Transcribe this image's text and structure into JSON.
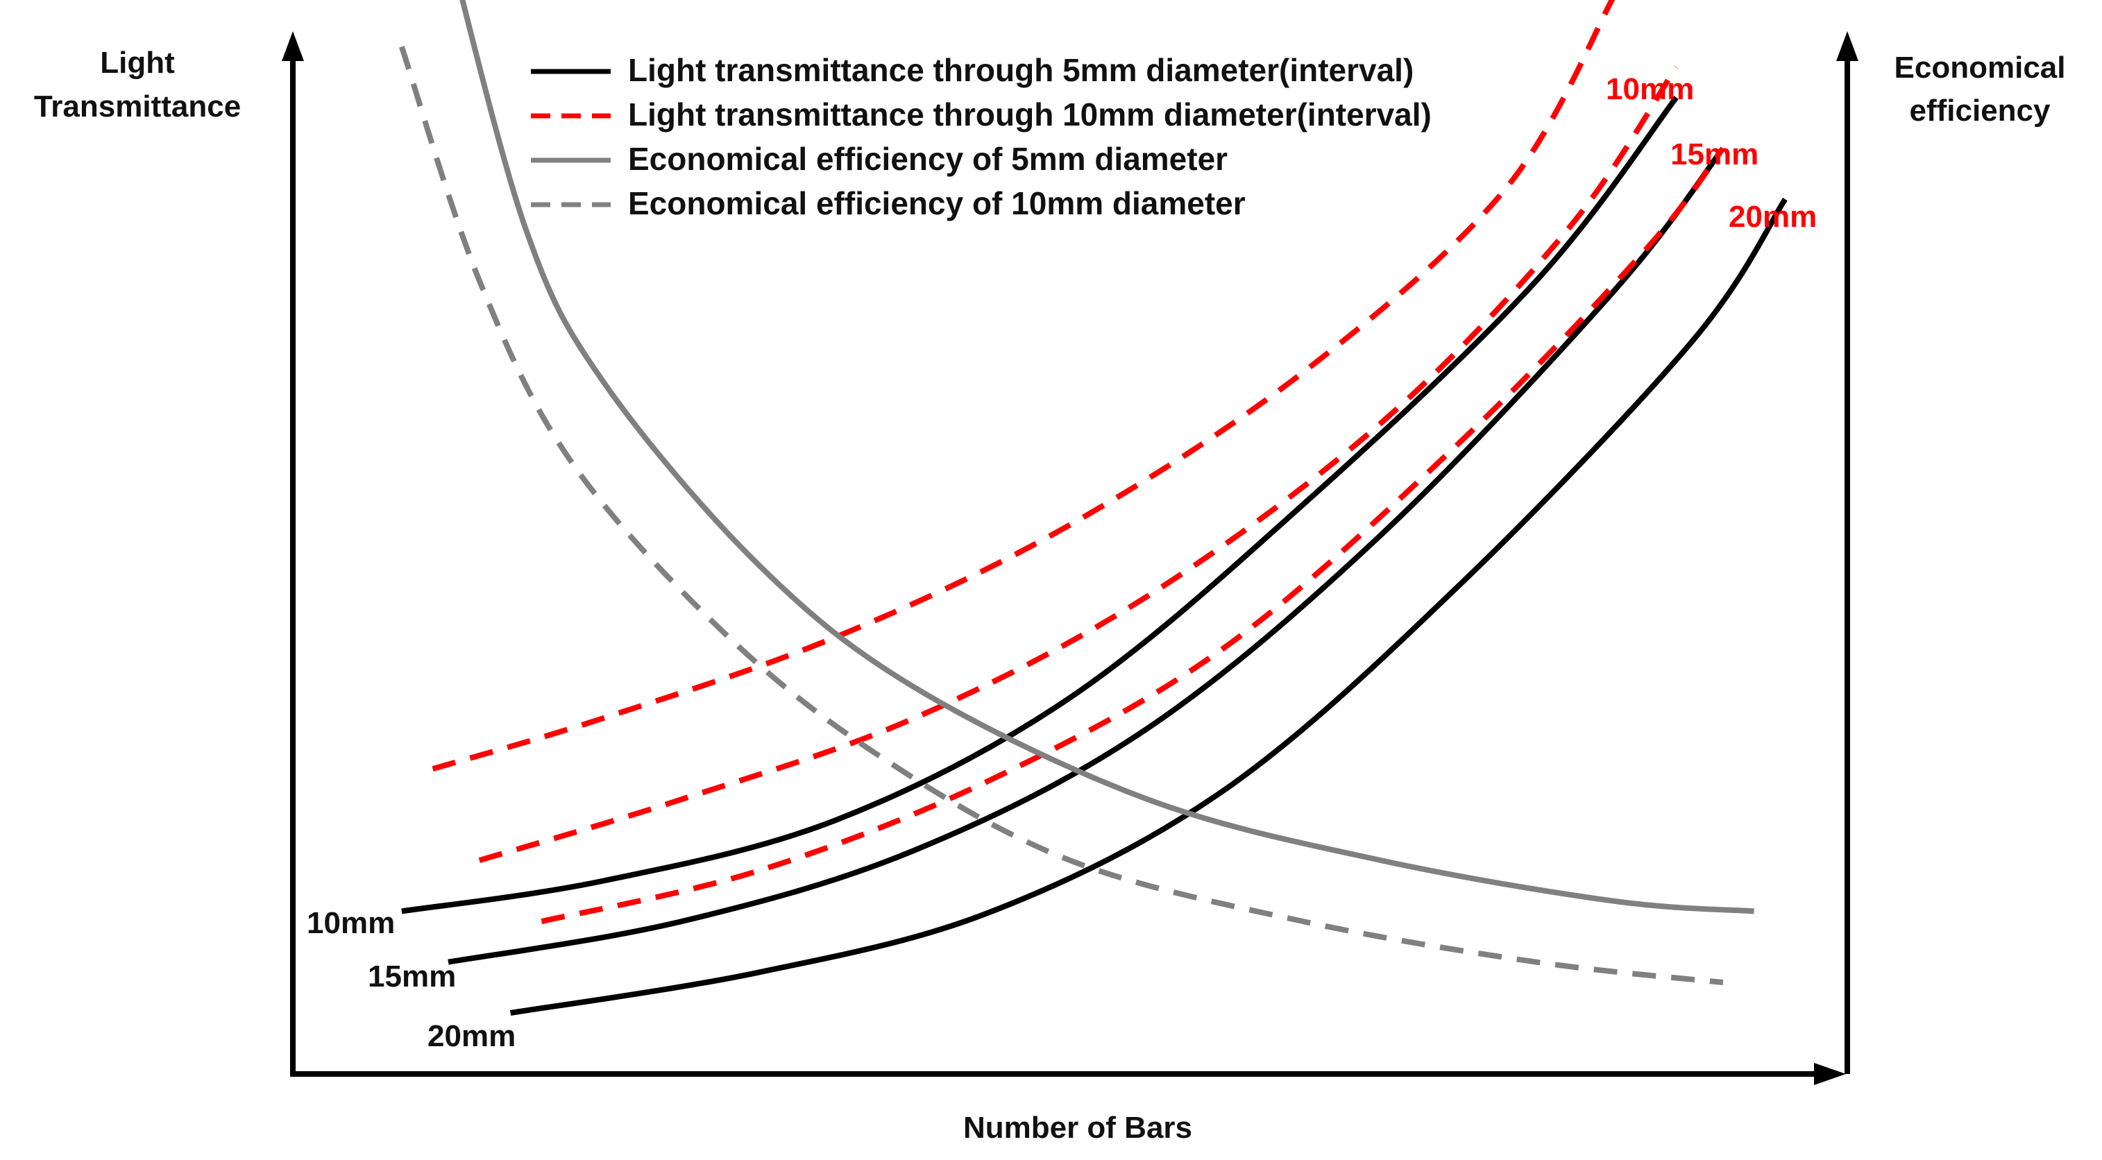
{
  "chart_data": {
    "type": "line",
    "title": "",
    "xlabel": "Number of Bars",
    "ylabel_left": [
      "Light",
      "Transmittance"
    ],
    "ylabel_right": [
      "Economical",
      "efficiency"
    ],
    "axis_ticks": "none",
    "grid": false,
    "legend_position": "top-center",
    "x_range": [
      0,
      100
    ],
    "y_range": [
      0,
      100
    ],
    "legend": [
      {
        "label": "Light transmittance through 5mm diameter(interval)",
        "color": "#000000",
        "style": "solid"
      },
      {
        "label": "Light transmittance through 10mm diameter(interval)",
        "color": "#ff0000",
        "style": "dashed"
      },
      {
        "label": "Economical efficiency of 5mm diameter",
        "color": "#808080",
        "style": "solid"
      },
      {
        "label": "Economical efficiency of 10mm diameter",
        "color": "#808080",
        "style": "dashed"
      }
    ],
    "series": [
      {
        "group": "Light transmittance through 5mm diameter(interval)",
        "label": "10mm",
        "color": "#000000",
        "dash": false,
        "points": [
          [
            7,
            16
          ],
          [
            20,
            19
          ],
          [
            35,
            25
          ],
          [
            50,
            37
          ],
          [
            65,
            56
          ],
          [
            80,
            78
          ],
          [
            89,
            96
          ]
        ]
      },
      {
        "group": "Light transmittance through 5mm diameter(interval)",
        "label": "15mm",
        "color": "#000000",
        "dash": false,
        "points": [
          [
            10,
            11
          ],
          [
            25,
            15
          ],
          [
            40,
            22
          ],
          [
            55,
            34
          ],
          [
            70,
            53
          ],
          [
            85,
            77
          ],
          [
            92,
            91
          ]
        ]
      },
      {
        "group": "Light transmittance through 5mm diameter(interval)",
        "label": "20mm",
        "color": "#000000",
        "dash": false,
        "points": [
          [
            14,
            6
          ],
          [
            30,
            10
          ],
          [
            45,
            16
          ],
          [
            60,
            28
          ],
          [
            75,
            48
          ],
          [
            90,
            72
          ],
          [
            96,
            86
          ]
        ]
      },
      {
        "group": "Light transmittance through 10mm diameter(interval)",
        "label": "10mm",
        "color": "#ff0000",
        "dash": true,
        "points": [
          [
            9,
            30
          ],
          [
            20,
            35
          ],
          [
            35,
            43
          ],
          [
            50,
            54
          ],
          [
            65,
            69
          ],
          [
            78,
            87
          ],
          [
            85,
            106
          ]
        ]
      },
      {
        "group": "Light transmittance through 10mm diameter(interval)",
        "label": "15mm",
        "color": "#ff0000",
        "dash": true,
        "points": [
          [
            12,
            21
          ],
          [
            25,
            27
          ],
          [
            40,
            35
          ],
          [
            55,
            47
          ],
          [
            70,
            64
          ],
          [
            82,
            83
          ],
          [
            89,
            99
          ]
        ]
      },
      {
        "group": "Light transmittance through 10mm diameter(interval)",
        "label": "20mm",
        "color": "#ff0000",
        "dash": true,
        "points": [
          [
            16,
            15
          ],
          [
            30,
            20
          ],
          [
            45,
            29
          ],
          [
            60,
            42
          ],
          [
            75,
            62
          ],
          [
            87,
            81
          ],
          [
            92,
            91
          ]
        ]
      },
      {
        "group": "Economical efficiency of 5mm diameter",
        "label": "",
        "color": "#808080",
        "dash": false,
        "points": [
          [
            10,
            111
          ],
          [
            15,
            83
          ],
          [
            20,
            68
          ],
          [
            30,
            50
          ],
          [
            40,
            38
          ],
          [
            55,
            27
          ],
          [
            70,
            21
          ],
          [
            85,
            17
          ],
          [
            94,
            16
          ]
        ]
      },
      {
        "group": "Economical efficiency of 10mm diameter",
        "label": "",
        "color": "#808080",
        "dash": true,
        "points": [
          [
            7,
            101
          ],
          [
            12,
            78
          ],
          [
            18,
            60
          ],
          [
            28,
            43
          ],
          [
            38,
            31
          ],
          [
            50,
            21
          ],
          [
            65,
            15
          ],
          [
            80,
            11
          ],
          [
            92,
            9
          ]
        ]
      }
    ]
  }
}
